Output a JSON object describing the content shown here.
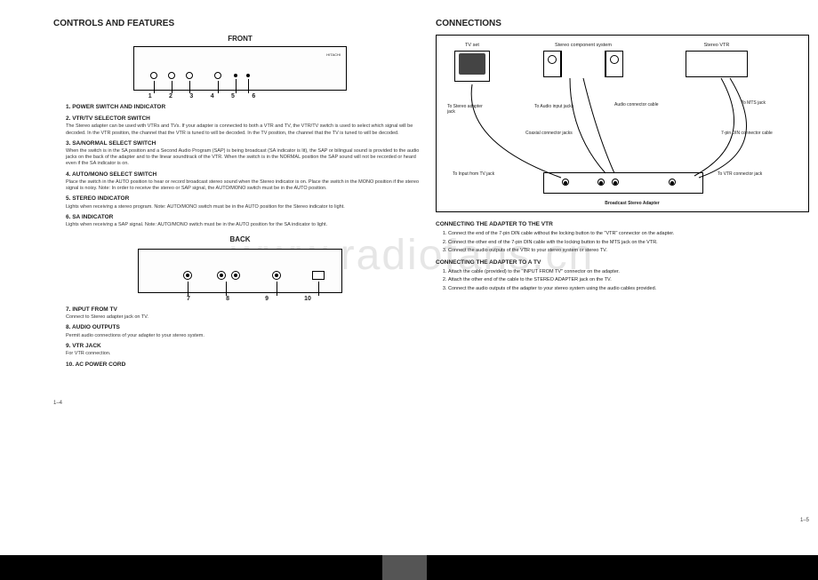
{
  "watermark": "www.radiofans.cn",
  "left": {
    "heading": "CONTROLS AND FEATURES",
    "front_label": "FRONT",
    "back_label": "BACK",
    "brand": "HITACHI",
    "front_nums": [
      "1",
      "2",
      "3",
      "4",
      "5",
      "6"
    ],
    "back_nums": [
      "7",
      "8",
      "9",
      "10"
    ],
    "items_front": [
      {
        "num": "1.",
        "title": "POWER SWITCH AND INDICATOR",
        "body": ""
      },
      {
        "num": "2.",
        "title": "VTR/TV SELECTOR SWITCH",
        "body": "The Stereo adapter can be used with VTRs and TVs. If your adapter is connected to both a VTR and TV, the VTR/TV switch is used to select which signal will be decoded. In the VTR position, the channel that the VTR is tuned to will be decoded. In the TV position, the channel that the TV is tuned to will be decoded."
      },
      {
        "num": "3.",
        "title": "SA/NORMAL SELECT SWITCH",
        "body": "When the switch is in the SA position and a Second Audio Program (SAP) is being broadcast (SA indicator is lit), the SAP or bilingual sound is provided to the audio jacks on the back of the adapter and to the linear soundtrack of the VTR. When the switch is in the NORMAL position the SAP sound will not be recorded or heard even if the SA indicator is on."
      },
      {
        "num": "4.",
        "title": "AUTO/MONO SELECT SWITCH",
        "body": "Place the switch in the AUTO position to hear or record broadcast stereo sound when the Stereo indicator is on. Place the switch in the MONO position if the stereo signal is noisy. Note: In order to receive the stereo or SAP signal, the AUTO/MONO switch must be in the AUTO position."
      },
      {
        "num": "5.",
        "title": "STEREO INDICATOR",
        "body": "Lights when receiving a stereo program. Note: AUTO/MONO switch must be in the AUTO position for the Stereo indicator to light."
      },
      {
        "num": "6.",
        "title": "SA INDICATOR",
        "body": "Lights when receiving a SAP signal. Note: AUTO/MONO switch must be in the AUTO position for the SA indicator to light."
      }
    ],
    "items_back": [
      {
        "num": "7.",
        "title": "INPUT FROM TV",
        "body": "Connect to Stereo adapter jack on TV."
      },
      {
        "num": "8.",
        "title": "AUDIO OUTPUTS",
        "body": "Permit audio connections of your adapter to your stereo system."
      },
      {
        "num": "9.",
        "title": "VTR JACK",
        "body": "For VTR connection."
      },
      {
        "num": "10.",
        "title": "AC POWER CORD",
        "body": ""
      }
    ],
    "pagenum": "1–4"
  },
  "right": {
    "heading": "CONNECTIONS",
    "devices": {
      "tv": "TV set",
      "stereo": "Stereo component system",
      "vtr": "Stereo VTR"
    },
    "labels": {
      "stereo_jack": "To Stereo adapter jack",
      "audio_in": "To Audio input jacks",
      "audio_conn": "Audio connector cable",
      "coax": "Coaxial connector jacks",
      "mts": "To MTS jack",
      "din": "7-pin DIN connector cable",
      "input_tv": "To Input from TV jack",
      "vtr_conn": "To VTR connector jack",
      "adapter": "Broadcast Stereo Adapter"
    },
    "section1_title": "CONNECTING THE ADAPTER TO THE VTR",
    "section1_steps": [
      "Connect the end of the 7-pin DIN cable without the locking button to the \"VTR\" connector on the adapter.",
      "Connect the other end of the 7-pin DIN cable with the locking button to the MTS jack on the VTR.",
      "Connect the audio outputs of the VTR to your stereo system or stereo TV."
    ],
    "section2_title": "CONNECTING THE ADAPTER TO A TV",
    "section2_steps": [
      "Attach the cable (provided) to the \"INPUT FROM TV\" connector on the adapter.",
      "Attach the other end of the cable to the STEREO ADAPTER jack on the TV.",
      "Connect the audio outputs of the adapter to your stereo system using the audio cables provided."
    ],
    "pagenum": "1–5"
  }
}
